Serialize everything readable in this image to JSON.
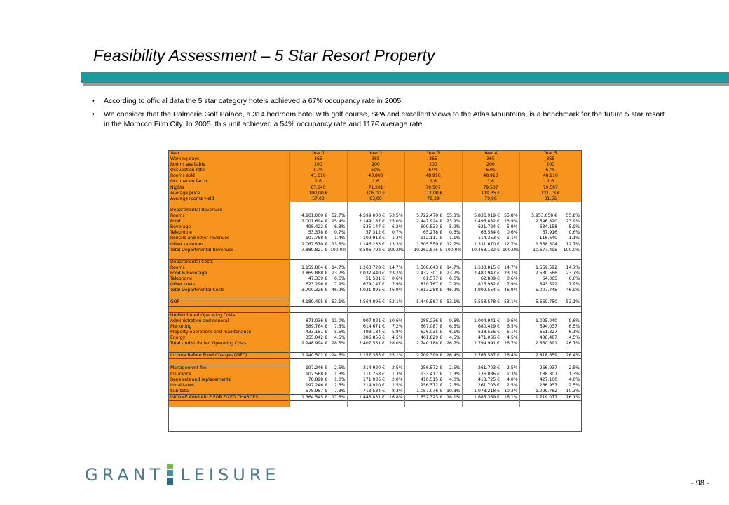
{
  "title": "Feasibility Assessment – 5 Star Resort Property",
  "bullets": [
    "According to official data the 5 star category hotels achieved a 67% occupancy rate in 2005.",
    "We consider that the Palmerie Golf Palace, a 314 bedroom hotel with golf course, SPA and excellent views to the Atlas Mountains, is a benchmark for the future 5 star resort in the Morocco Film City. In 2005, this unit achieved a 54% occupancy rate and 117€ average rate."
  ],
  "bullet_char": "•",
  "colors": {
    "accent": "#1a9a9a",
    "table_orange": "#f7941d",
    "logo_text": "#4a7a8a",
    "logo_green": "#7ab648"
  },
  "table": {
    "year_label": "Year",
    "years": [
      "Year 1",
      "Year 2",
      "Year 3",
      "Year 4",
      "Year 5"
    ],
    "ops": [
      {
        "label": "Working days",
        "values": [
          "365",
          "365",
          "365",
          "365",
          "365"
        ]
      },
      {
        "label": "Rooms available",
        "values": [
          "200",
          "200",
          "200",
          "200",
          "200"
        ]
      },
      {
        "label": "Occupation rate",
        "values": [
          "57%",
          "60%",
          "67%",
          "67%",
          "67%"
        ]
      },
      {
        "label": "Rooms sold",
        "values": [
          "41.610",
          "43.800",
          "48.910",
          "48.910",
          "48.910"
        ]
      },
      {
        "label": "Occupation factor",
        "values": [
          "1,6",
          "1,6",
          "1,6",
          "1,6",
          "1,6"
        ]
      },
      {
        "label": "Nights",
        "values": [
          "67.640",
          "71.201",
          "79.507",
          "79.507",
          "79.507"
        ]
      },
      {
        "label": "Average price",
        "values": [
          "100,00 €",
          "105,00 €",
          "117,00 €",
          "119,35 €",
          "121,73 €"
        ]
      },
      {
        "label": "Average rooms yield",
        "values": [
          "57,00",
          "63,00",
          "78,39",
          "79,96",
          "81,56"
        ]
      }
    ],
    "sections": [
      {
        "header": "Departmental Revenues",
        "rows": [
          {
            "label": "Rooms",
            "cells": [
              "4.161.000 €",
              "52.7%",
              "4.599.000 €",
              "53.5%",
              "5.722.470 €",
              "55.8%",
              "5.836.919 €",
              "55.8%",
              "5.953.658 €",
              "55.8%"
            ]
          },
          {
            "label": "Food",
            "cells": [
              "2.001.694 €",
              "25.4%",
              "2.149.187 €",
              "25.0%",
              "2.447.924 €",
              "23.9%",
              "2.496.882 €",
              "23.9%",
              "2.546.820",
              "23.9%"
            ]
          },
          {
            "label": "Beverage",
            "cells": [
              "498.422 €",
              "6.3%",
              "535.147 €",
              "6.2%",
              "609.533 €",
              "5.9%",
              "621.724 €",
              "5.9%",
              "634.158",
              "5.9%"
            ]
          },
          {
            "label": "Telephone",
            "cells": [
              "53.378 €",
              "0.7%",
              "57.312 €",
              "0.7%",
              "65.278 €",
              "0.6%",
              "66.584 €",
              "0.6%",
              "67.916",
              "0.6%"
            ]
          },
          {
            "label": "Rentals and other revenues",
            "cells": [
              "107.758 €",
              "1.4%",
              "109.913 €",
              "1.3%",
              "112.111 €",
              "1.1%",
              "114.353 €",
              "1.1%",
              "116.640",
              "1.1%"
            ]
          },
          {
            "label": "Other revenues",
            "cells": [
              "1.067.570 €",
              "13.5%",
              "1.146.233 €",
              "13.3%",
              "1.305.559 €",
              "12.7%",
              "1.331.670 €",
              "12.7%",
              "1.358.304",
              "12.7%"
            ]
          },
          {
            "label": "Total Departmental Revenues",
            "cells": [
              "7.889.821 €",
              "100.0%",
              "8.596.792 €",
              "100.0%",
              "10.262.875 €",
              "100.0%",
              "10.468.132 €",
              "100.0%",
              "10.677.495",
              "100.0%"
            ]
          }
        ]
      },
      {
        "header": "Departmental Costs",
        "rows": [
          {
            "label": "Rooms",
            "cells": [
              "1.159.804 €",
              "14.7%",
              "1.263.728 €",
              "14.7%",
              "1.508.643 €",
              "14.7%",
              "1.538.815 €",
              "14.7%",
              "1.569.592",
              "14.7%"
            ]
          },
          {
            "label": "Food & Beverage",
            "cells": [
              "1.869.888 €",
              "23.7%",
              "2.037.440 €",
              "23.7%",
              "2.432.301 €",
              "23.7%",
              "2.480.947 €",
              "23.7%",
              "2.530.566",
              "23.7%"
            ]
          },
          {
            "label": "Telephone",
            "cells": [
              "47.339 €",
              "0.6%",
              "51.581 €",
              "0.6%",
              "61.577 €",
              "0.6%",
              "62.809 €",
              "0.6%",
              "64.065",
              "0.6%"
            ]
          },
          {
            "label": "Other costs",
            "cells": [
              "623.296 €",
              "7.9%",
              "679.147 €",
              "7.9%",
              "810.767 €",
              "7.9%",
              "826.982 €",
              "7.9%",
              "843.522",
              "7.9%"
            ]
          },
          {
            "label": "Total Departmental Costs",
            "cells": [
              "3.700.326 €",
              "46.9%",
              "4.031.895 €",
              "46.9%",
              "4.813.288 €",
              "46.9%",
              "4.909.554 €",
              "46.9%",
              "5.007.745",
              "46.9%"
            ]
          }
        ]
      },
      {
        "header": "",
        "rows": [
          {
            "label": "GOP",
            "cells": [
              "4.189.495 €",
              "53.1%",
              "4.564.896 €",
              "53.1%",
              "5.449.587 €",
              "53.1%",
              "5.558.578 €",
              "53.1%",
              "5.669.750",
              "53.1%"
            ],
            "boxed": true
          }
        ]
      },
      {
        "header": "Undistributed Operating Costs",
        "rows": [
          {
            "label": "Administration and general",
            "cells": [
              "871.036 €",
              "11.0%",
              "907.821 €",
              "10.6%",
              "985.236 €",
              "9.6%",
              "1.004.941 €",
              "9.6%",
              "1.025.040",
              "9.6%"
            ]
          },
          {
            "label": "Marketing",
            "cells": [
              "589.764 €",
              "7.5%",
              "614.671 €",
              "7.2%",
              "667.087 €",
              "6.5%",
              "680.429 €",
              "6.5%",
              "694.037",
              "6.5%"
            ]
          },
          {
            "label": "Property operations and maintenance",
            "cells": [
              "433.151 €",
              "5.5%",
              "498.184 €",
              "5.8%",
              "626.035 €",
              "6.1%",
              "638.556 €",
              "6.1%",
              "651.327",
              "6.1%"
            ]
          },
          {
            "label": "Energy",
            "cells": [
              "355.042 €",
              "4.5%",
              "386.856 €",
              "4.5%",
              "461.829 €",
              "4.5%",
              "471.066 €",
              "4.5%",
              "480.487",
              "4.5%"
            ]
          },
          {
            "label": "Total Undistributed Operating Costs",
            "cells": [
              "2.248.994 €",
              "28.5%",
              "2.407.531 €",
              "28.0%",
              "2.740.188 €",
              "26.7%",
              "2.794.991 €",
              "26.7%",
              "2.850.891",
              "26.7%"
            ]
          }
        ]
      },
      {
        "header": "",
        "rows": [
          {
            "label": "Income Before Fixed Charges (IBFC)",
            "cells": [
              "1.940.502 €",
              "24.6%",
              "2.157.365 €",
              "25.1%",
              "2.709.399 €",
              "26.4%",
              "2.763.587 €",
              "26.4%",
              "2.818.859",
              "26.4%"
            ],
            "boxed": true
          }
        ]
      },
      {
        "header": "",
        "rows": [
          {
            "label": "Management fee",
            "cells": [
              "197.246 €",
              "2.5%",
              "214.920 €",
              "2.5%",
              "256.572 €",
              "2.5%",
              "261.703 €",
              "2.5%",
              "266.937",
              "2.5%"
            ]
          },
          {
            "label": "Insurance",
            "cells": [
              "102.568 €",
              "1.3%",
              "111.758 €",
              "1.3%",
              "133.417 €",
              "1.3%",
              "136.086 €",
              "1.3%",
              "138.807",
              "1.3%"
            ]
          },
          {
            "label": "Renewals and replacements",
            "cells": [
              "78.898 €",
              "1.0%",
              "171.936 €",
              "2.0%",
              "410.515 €",
              "4.0%",
              "418.725 €",
              "4.0%",
              "427.100",
              "4.0%"
            ]
          },
          {
            "label": "Local taxes",
            "cells": [
              "197.246 €",
              "2.5%",
              "214.920 €",
              "2.5%",
              "256.572 €",
              "2.5%",
              "261.703 €",
              "2.5%",
              "266.937",
              "2.5%"
            ]
          },
          {
            "label": "Sub-total",
            "cells": [
              "575.957 €",
              "7.3%",
              "713.534 €",
              "8.3%",
              "1.057.076 €",
              "10.3%",
              "1.078.218 €",
              "10.3%",
              "1.099.782",
              "10.3%"
            ]
          },
          {
            "label": "INCOME AVAILABLE FOR FIXED CHARGES",
            "cells": [
              "1.364.545 €",
              "17.3%",
              "1.443.831 €",
              "16.8%",
              "1.652.323 €",
              "16.1%",
              "1.685.369 €",
              "16.1%",
              "1.719.077",
              "16.1%"
            ],
            "boxed": true
          }
        ]
      }
    ]
  },
  "logo": {
    "left": "GRANT",
    "right": "LEISURE"
  },
  "page_number": "- 98 -"
}
